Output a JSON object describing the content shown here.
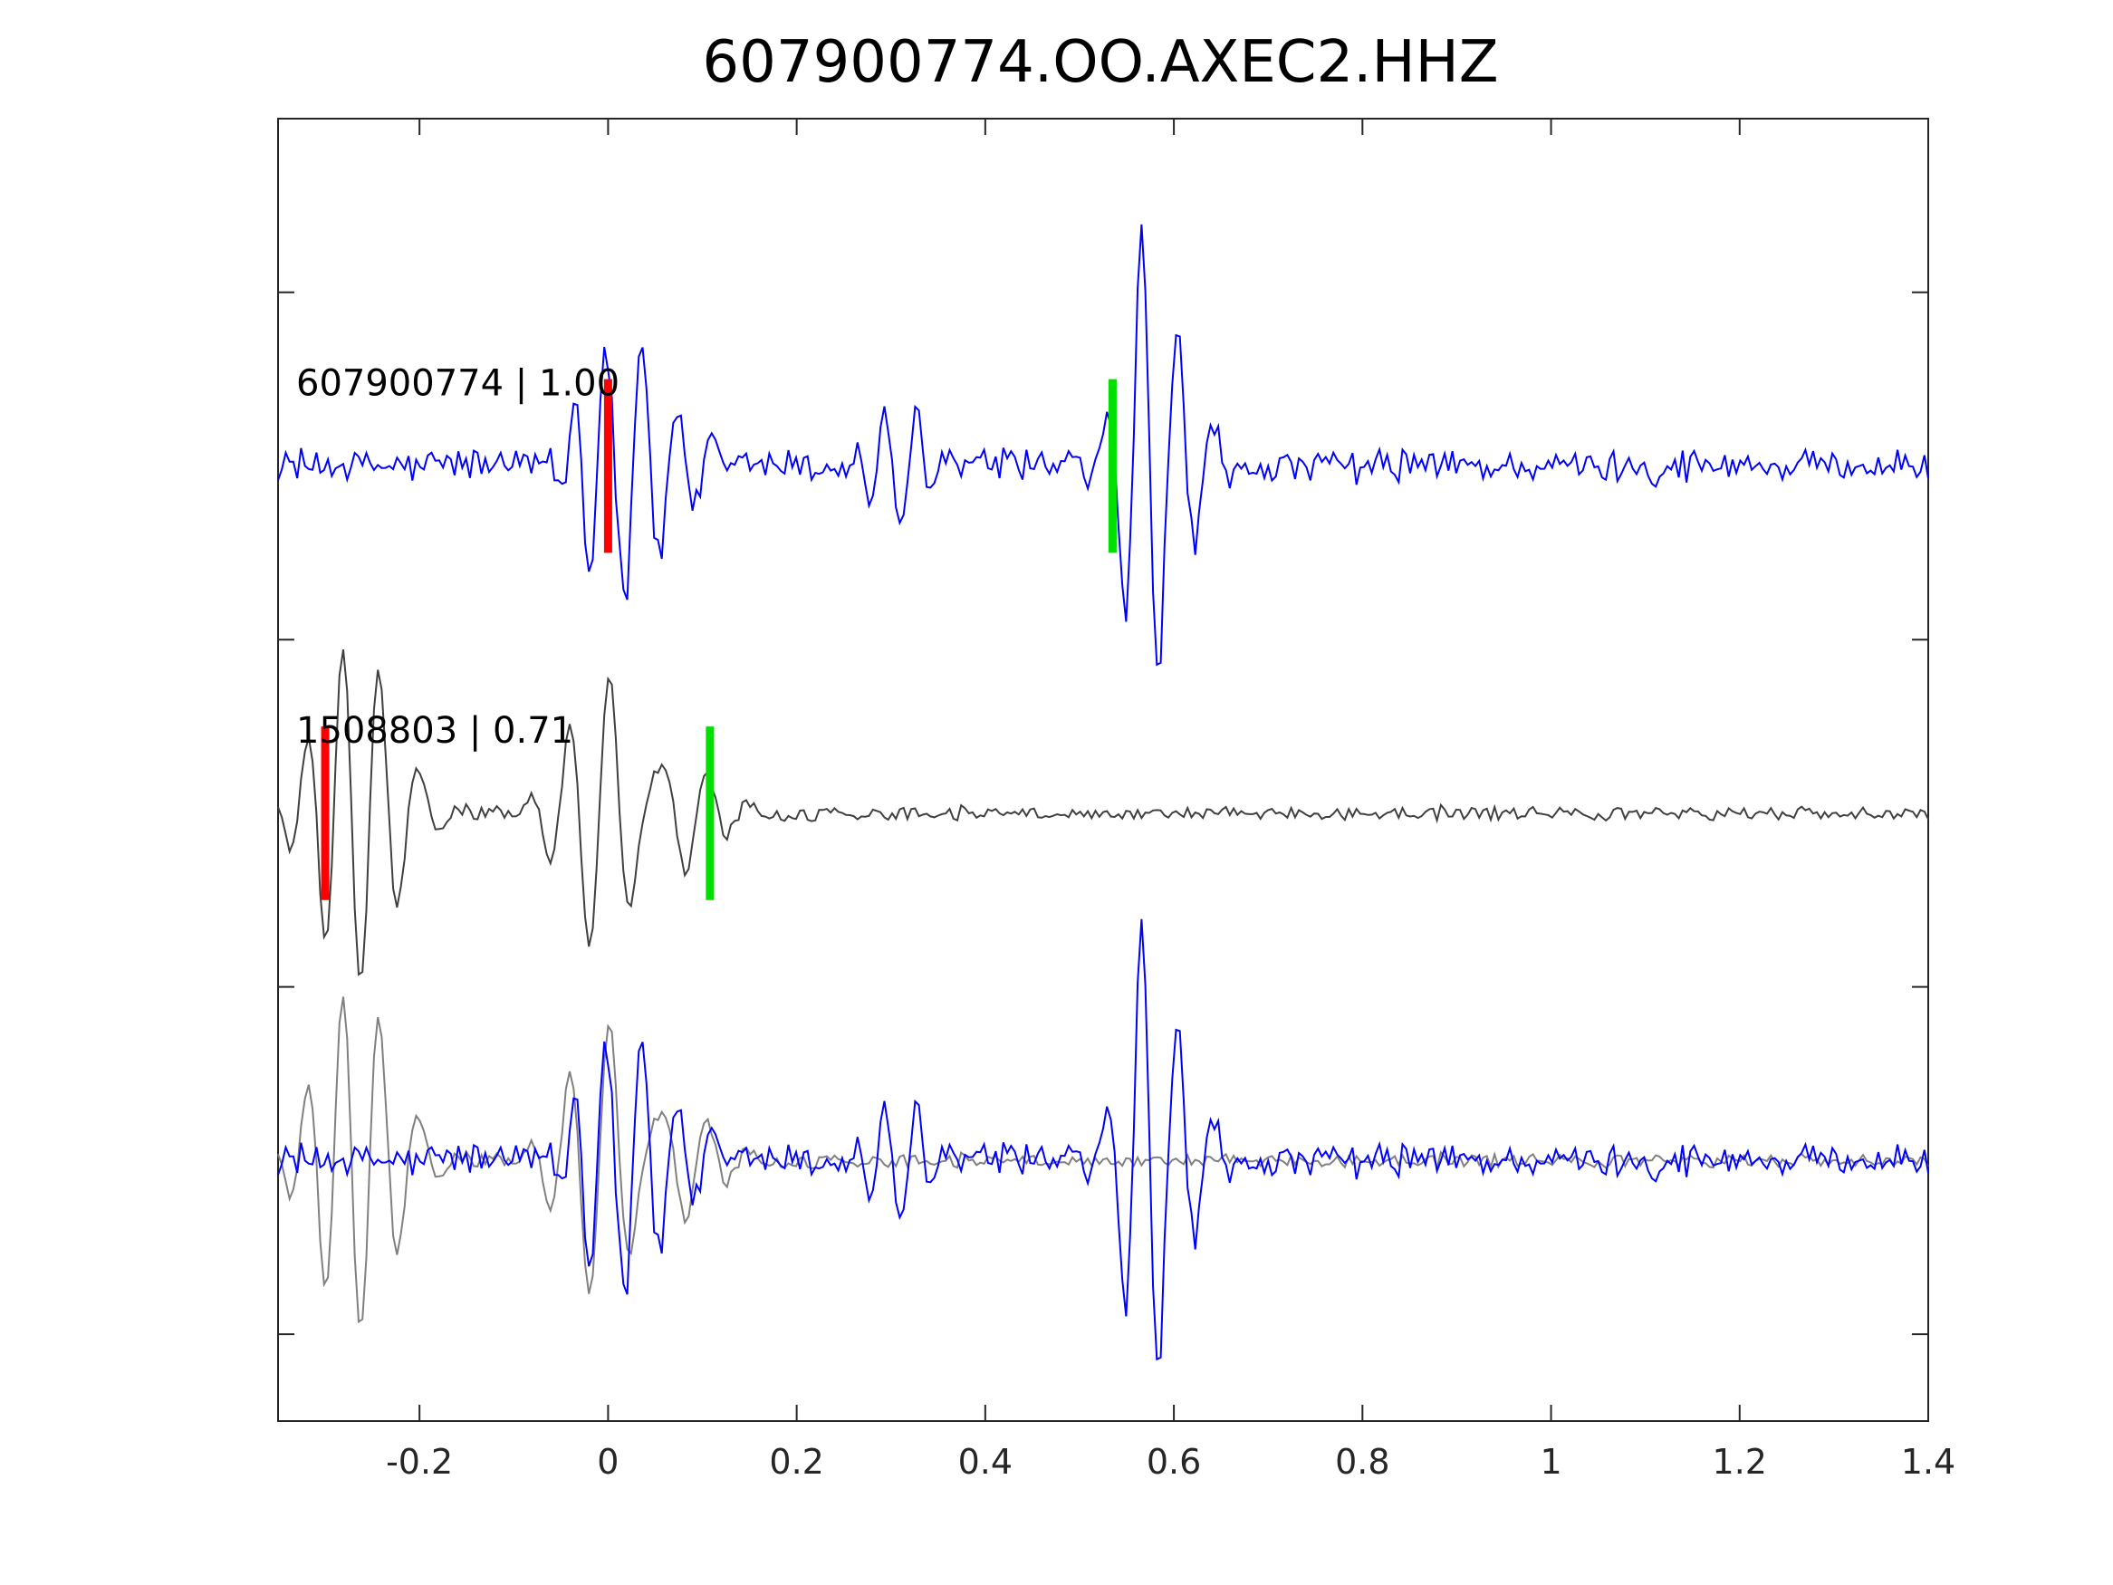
{
  "chart_data": {
    "type": "line",
    "title": "607900774.OO.AXEC2.HHZ",
    "xlabel": "",
    "ylabel": "",
    "xlim": [
      -0.35,
      1.4
    ],
    "x_ticks": [
      -0.2,
      0,
      0.2,
      0.4,
      0.6,
      0.8,
      1,
      1.2,
      1.4
    ],
    "x_tick_labels": [
      "-0.2",
      "0",
      "0.2",
      "0.4",
      "0.6",
      "0.8",
      "1",
      "1.2",
      "1.4"
    ],
    "ylim": [
      0,
      7.5
    ],
    "y_ticks": [
      0.5,
      2.5,
      4.5,
      6.5
    ],
    "grid": false,
    "traces": [
      {
        "label": "607900774 | 1.00",
        "baseline": 5.5,
        "color": "#0000ff",
        "picks": [
          {
            "phase": "P",
            "t": 0.0,
            "color": "#ff0000"
          },
          {
            "phase": "S",
            "t": 0.535,
            "color": "#00e000"
          }
        ],
        "events": [
          {
            "t": -0.01,
            "a": 0.45,
            "f": 35,
            "d": 0.02
          },
          {
            "t": 0.015,
            "a": -0.75,
            "f": 30,
            "d": 0.03
          },
          {
            "t": 0.04,
            "a": 0.55,
            "f": 28,
            "d": 0.04
          },
          {
            "t": 0.31,
            "a": -0.35,
            "f": 30,
            "d": 0.03
          },
          {
            "t": 0.565,
            "a": 0.65,
            "f": 30,
            "d": 0.018
          },
          {
            "t": 0.585,
            "a": -0.9,
            "f": 26,
            "d": 0.035
          }
        ],
        "noise": 0.2
      },
      {
        "label": "1508803 | 0.71",
        "baseline": 3.5,
        "color": "#404040",
        "picks": [
          {
            "phase": "P",
            "t": -0.3,
            "color": "#ff0000"
          },
          {
            "phase": "S",
            "t": 0.108,
            "color": "#00e000"
          }
        ],
        "events": [
          {
            "t": -0.28,
            "a": 0.95,
            "f": 26,
            "d": 0.035
          },
          {
            "t": -0.245,
            "a": 0.35,
            "f": 22,
            "d": 0.04
          },
          {
            "t": 0.0,
            "a": 0.9,
            "f": 24,
            "d": 0.04
          },
          {
            "t": 0.06,
            "a": 0.55,
            "f": 22,
            "d": 0.04
          }
        ],
        "noise": 0.08
      }
    ],
    "overlay": {
      "baseline": 1.5,
      "series": [
        {
          "trace": 1,
          "color": "#808080",
          "shift": 0.0
        },
        {
          "trace": 0,
          "color": "#0000ff",
          "shift": 0.0
        }
      ]
    }
  }
}
